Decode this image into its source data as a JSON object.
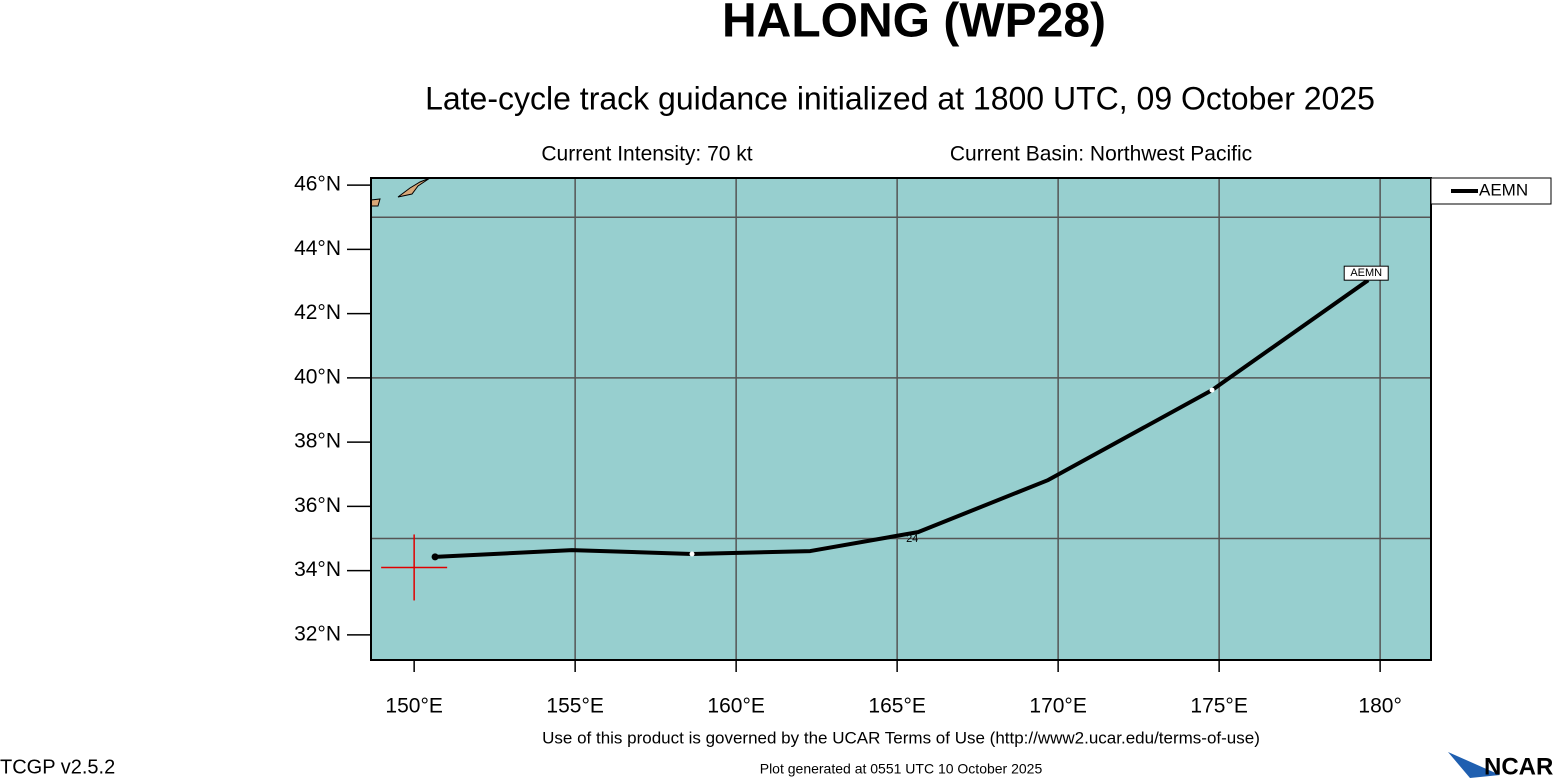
{
  "chart_data": {
    "type": "line",
    "title": "HALONG (WP28)",
    "subtitle": "Late-cycle track guidance initialized at 1800 UTC, 09 October 2025",
    "intensity_text": "Current Intensity: 70 kt",
    "basin_text": "Current Basin: Northwest Pacific",
    "footer_terms": "Use of this product is governed by the UCAR Terms of Use (http://www2.ucar.edu/terms-of-use)",
    "footer_generated": "Plot generated at 0551 UTC   10 October 2025",
    "version": "TCGP v2.5.2",
    "logo": "NCAR",
    "xlim": [
      148.66,
      181.58
    ],
    "ylim": [
      31.22,
      46.22
    ],
    "xticks": [
      {
        "value": 150,
        "label": "150°E"
      },
      {
        "value": 155,
        "label": "155°E"
      },
      {
        "value": 160,
        "label": "160°E"
      },
      {
        "value": 165,
        "label": "165°E"
      },
      {
        "value": 170,
        "label": "170°E"
      },
      {
        "value": 175,
        "label": "175°E"
      },
      {
        "value": 180,
        "label": "180°"
      }
    ],
    "yticks": [
      {
        "value": 32,
        "label": "32°N"
      },
      {
        "value": 34,
        "label": "34°N"
      },
      {
        "value": 36,
        "label": "36°N"
      },
      {
        "value": 38,
        "label": "38°N"
      },
      {
        "value": 40,
        "label": "40°N"
      },
      {
        "value": 42,
        "label": "42°N"
      },
      {
        "value": 44,
        "label": "44°N"
      },
      {
        "value": 46,
        "label": "46°N"
      }
    ],
    "xgrid": [
      155,
      160,
      165,
      170,
      175,
      180
    ],
    "ygrid": [
      35,
      40,
      45
    ],
    "background_color": "#97cfcf",
    "legend": "top-right",
    "current_position": {
      "x": 150,
      "y": 34.1,
      "color": "#e00000"
    },
    "series": [
      {
        "name": "AEMN",
        "color": "#000000",
        "x": [
          150.65,
          154.9,
          158.63,
          162.3,
          165.65,
          169.69,
          174.78,
          179.63
        ],
        "values": [
          34.43,
          34.64,
          34.52,
          34.61,
          35.2,
          36.82,
          39.62,
          43.04
        ],
        "markers": [
          false,
          false,
          true,
          false,
          false,
          false,
          true,
          false
        ],
        "point_labels": [
          null,
          null,
          null,
          null,
          "24",
          null,
          null,
          null
        ]
      }
    ]
  }
}
